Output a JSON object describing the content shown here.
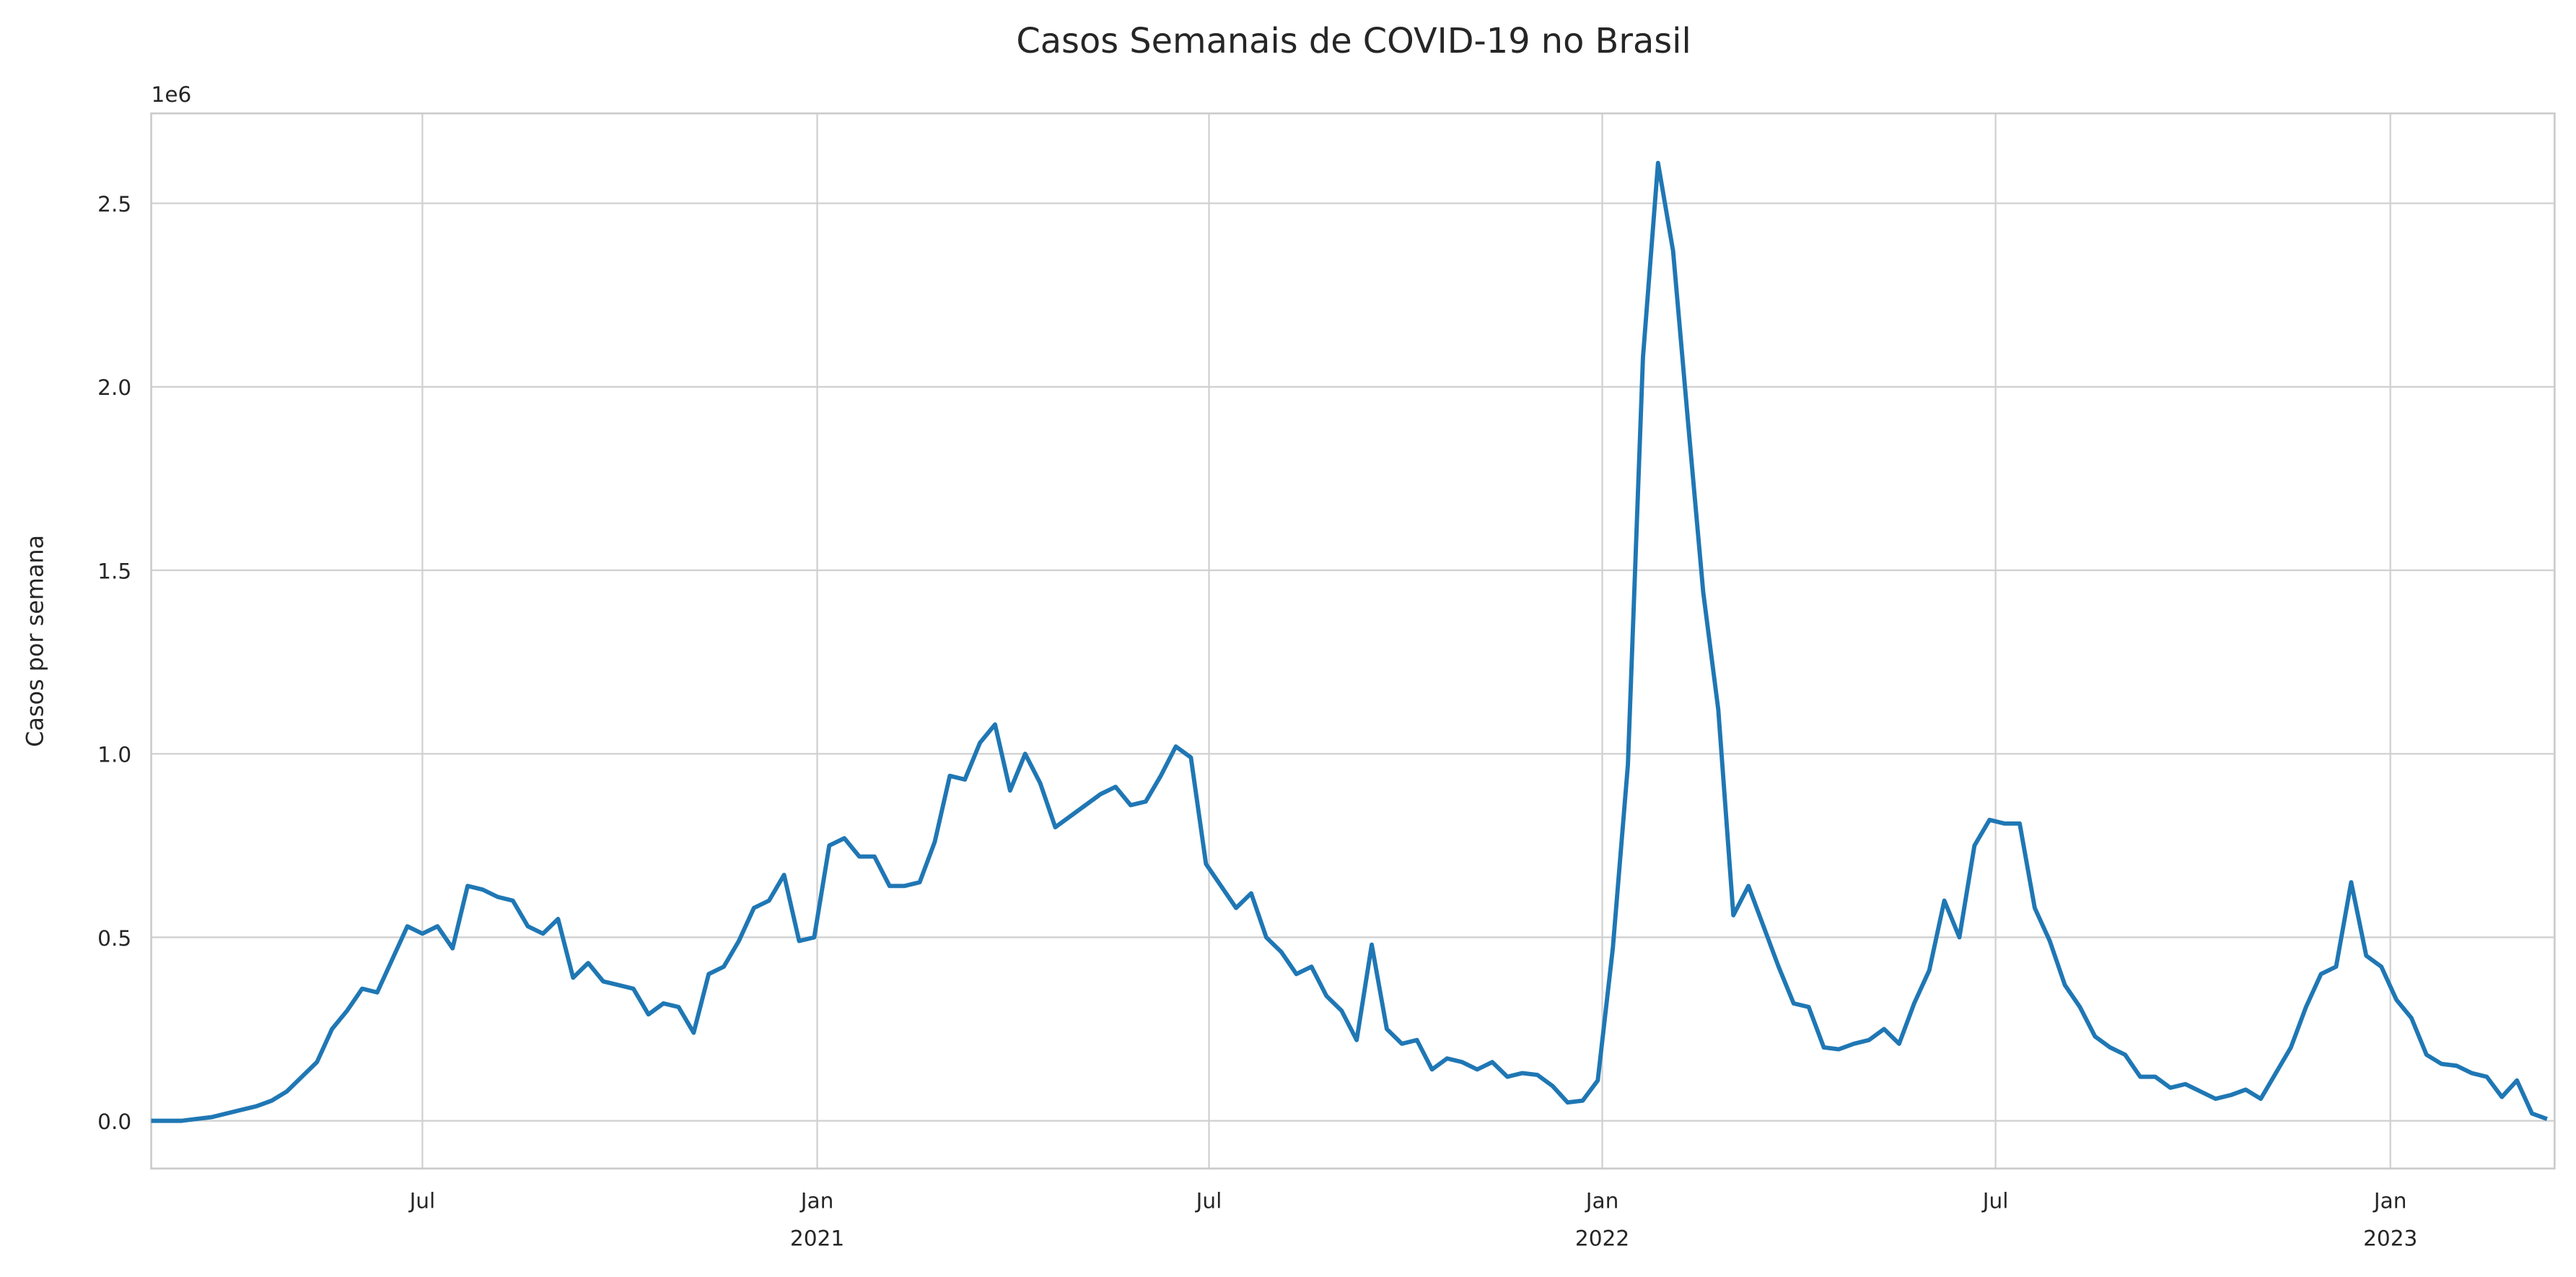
{
  "chart_data": {
    "type": "line",
    "title": "Casos Semanais de COVID-19 no Brasil",
    "ylabel": "Casos por semana",
    "y_offset_label": "1e6",
    "series": [
      {
        "name": "Casos",
        "color": "#1f77b4",
        "values": [
          0.0,
          0.0,
          0.0,
          0.005,
          0.01,
          0.02,
          0.03,
          0.04,
          0.055,
          0.08,
          0.12,
          0.16,
          0.25,
          0.3,
          0.36,
          0.35,
          0.44,
          0.53,
          0.51,
          0.53,
          0.47,
          0.64,
          0.63,
          0.61,
          0.6,
          0.53,
          0.51,
          0.55,
          0.39,
          0.43,
          0.38,
          0.37,
          0.36,
          0.29,
          0.32,
          0.31,
          0.24,
          0.4,
          0.42,
          0.49,
          0.58,
          0.6,
          0.67,
          0.49,
          0.5,
          0.75,
          0.77,
          0.72,
          0.72,
          0.64,
          0.64,
          0.65,
          0.76,
          0.94,
          0.93,
          1.03,
          1.08,
          0.9,
          1.0,
          0.92,
          0.8,
          0.83,
          0.86,
          0.89,
          0.91,
          0.86,
          0.87,
          0.94,
          1.02,
          0.99,
          0.7,
          0.64,
          0.58,
          0.62,
          0.5,
          0.46,
          0.4,
          0.42,
          0.34,
          0.3,
          0.22,
          0.48,
          0.25,
          0.21,
          0.22,
          0.14,
          0.17,
          0.16,
          0.14,
          0.16,
          0.12,
          0.13,
          0.125,
          0.095,
          0.05,
          0.055,
          0.11,
          0.47,
          0.97,
          2.08,
          2.61,
          2.37,
          1.9,
          1.44,
          1.12,
          0.56,
          0.64,
          0.53,
          0.42,
          0.32,
          0.31,
          0.2,
          0.195,
          0.21,
          0.22,
          0.25,
          0.21,
          0.32,
          0.41,
          0.6,
          0.5,
          0.75,
          0.82,
          0.81,
          0.81,
          0.58,
          0.49,
          0.37,
          0.31,
          0.23,
          0.2,
          0.18,
          0.12,
          0.12,
          0.09,
          0.1,
          0.08,
          0.06,
          0.07,
          0.085,
          0.06,
          0.13,
          0.2,
          0.31,
          0.4,
          0.42,
          0.65,
          0.45,
          0.42,
          0.33,
          0.28,
          0.18,
          0.155,
          0.15,
          0.13,
          0.12,
          0.065,
          0.11,
          0.02,
          0.005
        ]
      }
    ],
    "xlim": [
      0,
      159.5
    ],
    "xticks": [
      {
        "value": 18,
        "label": "Jul"
      },
      {
        "value": 44.2,
        "label": "Jan",
        "year": "2021"
      },
      {
        "value": 70.2,
        "label": "Jul"
      },
      {
        "value": 96.3,
        "label": "Jan",
        "year": "2022"
      },
      {
        "value": 122.4,
        "label": "Jul"
      },
      {
        "value": 148.6,
        "label": "Jan",
        "year": "2023"
      }
    ],
    "ylim": [
      -0.13,
      2.745
    ],
    "yticks": [
      {
        "value": 0,
        "label": "0.0"
      },
      0.5,
      {
        "value": 1,
        "label": "1.0"
      },
      1.5,
      {
        "value": 2,
        "label": "2.0"
      },
      2.5
    ],
    "grid": true
  }
}
